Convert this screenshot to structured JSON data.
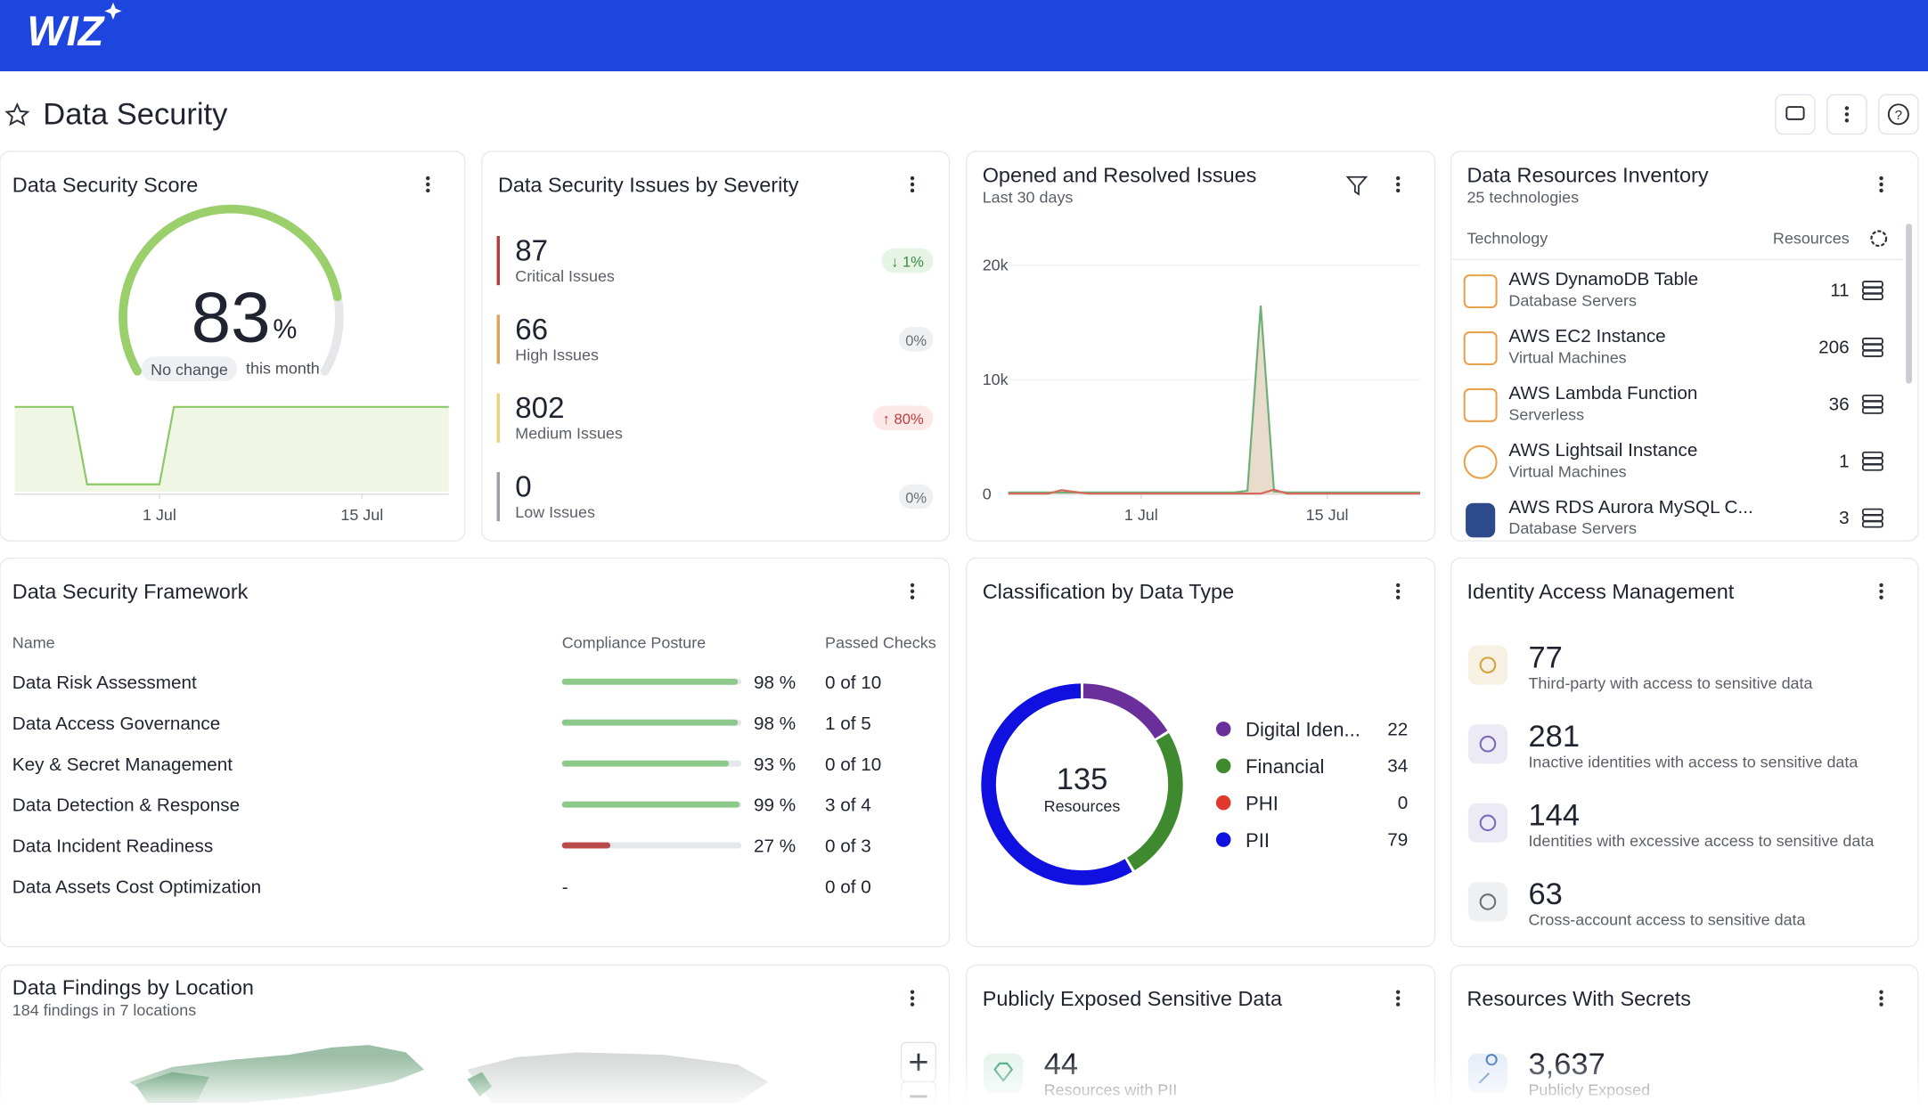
{
  "header": {
    "logo": "WIZ"
  },
  "page": {
    "title": "Data Security"
  },
  "score": {
    "title": "Data Security Score",
    "value": 83,
    "unit": "%",
    "gauge_range": [
      0,
      100
    ],
    "change": "No change",
    "period": "this month",
    "chart": {
      "type": "area",
      "color": "#8cc866",
      "xlim": [
        0,
        30
      ],
      "xticks": [
        {
          "value": 10,
          "label": "1 Jul"
        },
        {
          "value": 24,
          "label": "15 Jul"
        }
      ],
      "ylim": [
        60,
        86
      ],
      "x": [
        0,
        1,
        2,
        3,
        4,
        5,
        6,
        7,
        8,
        9,
        10,
        11,
        12,
        13,
        14,
        15,
        16,
        17,
        18,
        19,
        20,
        21,
        22,
        23,
        24,
        25,
        26,
        27,
        28,
        29,
        30
      ],
      "values": [
        83,
        83,
        83,
        83,
        83,
        62,
        62,
        62,
        62,
        62,
        62,
        83,
        83,
        83,
        83,
        83,
        83,
        83,
        83,
        83,
        83,
        83,
        83,
        83,
        83,
        83,
        83,
        83,
        83,
        83,
        83
      ]
    }
  },
  "severity": {
    "title": "Data Security Issues by Severity",
    "items": [
      {
        "value": 87,
        "label": "Critical Issues",
        "change": "↓ 1%",
        "color": "#b83b3b",
        "change_color": "#3d8b3d",
        "change_bg": "#e6f4e6"
      },
      {
        "value": 66,
        "label": "High Issues",
        "change": "0%",
        "color": "#e0a35a",
        "change_color": "#6b6f76",
        "change_bg": "#eff0f2"
      },
      {
        "value": 802,
        "label": "Medium Issues",
        "change": "↑ 80%",
        "color": "#ecd27a",
        "change_color": "#c23b3b",
        "change_bg": "#fde8e8"
      },
      {
        "value": 0,
        "label": "Low Issues",
        "change": "0%",
        "color": "#9aa0a8",
        "change_color": "#6b6f76",
        "change_bg": "#eff0f2"
      }
    ]
  },
  "issues": {
    "title": "Opened and Resolved Issues",
    "subtitle": "Last 30 days",
    "chart": {
      "type": "line",
      "xlim": [
        0,
        31
      ],
      "xticks": [
        {
          "value": 10,
          "label": "1 Jul"
        },
        {
          "value": 24,
          "label": "15 Jul"
        }
      ],
      "ylim": [
        0,
        21000
      ],
      "yticks": [
        0,
        {
          "value": 10000,
          "label": "10k"
        },
        {
          "value": 20000,
          "label": "20k"
        }
      ],
      "x": [
        0,
        1,
        2,
        3,
        4,
        5,
        6,
        7,
        8,
        9,
        10,
        11,
        12,
        13,
        14,
        15,
        16,
        17,
        18,
        19,
        20,
        21,
        22,
        23,
        24,
        25,
        26,
        27,
        28,
        29,
        30,
        31
      ],
      "series": [
        {
          "color": "#6fb078",
          "fill": "#eadccd",
          "values": [
            150,
            150,
            150,
            150,
            150,
            150,
            150,
            150,
            150,
            150,
            150,
            150,
            150,
            150,
            150,
            150,
            150,
            150,
            300,
            16500,
            250,
            150,
            150,
            150,
            150,
            150,
            150,
            150,
            150,
            150,
            150,
            150
          ]
        },
        {
          "color": "#d46a5a",
          "values": [
            50,
            50,
            50,
            50,
            350,
            200,
            50,
            50,
            50,
            50,
            50,
            50,
            50,
            50,
            50,
            50,
            50,
            50,
            50,
            50,
            400,
            50,
            50,
            50,
            50,
            50,
            50,
            50,
            50,
            50,
            50,
            50
          ]
        }
      ]
    }
  },
  "inventory": {
    "title": "Data Resources Inventory",
    "subtitle": "25 technologies",
    "columns": [
      "Technology",
      "Resources"
    ],
    "rows": [
      {
        "name": "AWS DynamoDB Table",
        "category": "Database Servers",
        "count": 11
      },
      {
        "name": "AWS EC2 Instance",
        "category": "Virtual Machines",
        "count": 206
      },
      {
        "name": "AWS Lambda Function",
        "category": "Serverless",
        "count": 36
      },
      {
        "name": "AWS Lightsail Instance",
        "category": "Virtual Machines",
        "count": 1
      },
      {
        "name": "AWS RDS Aurora MySQL C...",
        "category": "Database Servers",
        "count": 3
      }
    ]
  },
  "framework": {
    "title": "Data Security Framework",
    "columns": [
      "Name",
      "Compliance Posture",
      "Passed Checks"
    ],
    "posture_range": [
      0,
      100
    ],
    "rows": [
      {
        "name": "Data Risk Assessment",
        "posture": 98,
        "posture_label": "98 %",
        "passed": "0 of 10",
        "color": "#8cc98a"
      },
      {
        "name": "Data Access Governance",
        "posture": 98,
        "posture_label": "98 %",
        "passed": "1 of 5",
        "color": "#8cc98a"
      },
      {
        "name": "Key & Secret Management",
        "posture": 93,
        "posture_label": "93 %",
        "passed": "0 of 10",
        "color": "#8cc98a"
      },
      {
        "name": "Data Detection & Response",
        "posture": 99,
        "posture_label": "99 %",
        "passed": "3 of 4",
        "color": "#8cc98a"
      },
      {
        "name": "Data Incident Readiness",
        "posture": 27,
        "posture_label": "27 %",
        "passed": "0 of 3",
        "color": "#b84a4a"
      },
      {
        "name": "Data Assets Cost Optimization",
        "posture": null,
        "posture_label": "-",
        "passed": "0 of 0",
        "color": "#8cc98a"
      }
    ]
  },
  "classification": {
    "title": "Classification by Data Type",
    "total": 135,
    "total_label": "Resources",
    "chart": {
      "type": "donut",
      "series": [
        {
          "name": "Digital Iden...",
          "value": 22,
          "color": "#6a2f9a"
        },
        {
          "name": "Financial",
          "value": 34,
          "color": "#3f8a2f"
        },
        {
          "name": "PHI",
          "value": 0,
          "color": "#e0392b"
        },
        {
          "name": "PII",
          "value": 79,
          "color": "#1010e0"
        }
      ]
    }
  },
  "iam": {
    "title": "Identity Access Management",
    "items": [
      {
        "value": 77,
        "label": "Third-party with access to sensitive data"
      },
      {
        "value": 281,
        "label": "Inactive identities with access to sensitive data"
      },
      {
        "value": 144,
        "label": "Identities with excessive access to sensitive data"
      },
      {
        "value": 63,
        "label": "Cross-account access to sensitive data"
      }
    ]
  },
  "findings": {
    "title": "Data Findings by Location",
    "subtitle": "184 findings in 7 locations"
  },
  "exposed": {
    "title": "Publicly Exposed Sensitive Data",
    "value": 44,
    "label": "Resources with PII"
  },
  "secrets": {
    "title": "Resources With Secrets",
    "value": {
      "value": 3637,
      "label": "3,637"
    },
    "label": "Publicly Exposed"
  }
}
